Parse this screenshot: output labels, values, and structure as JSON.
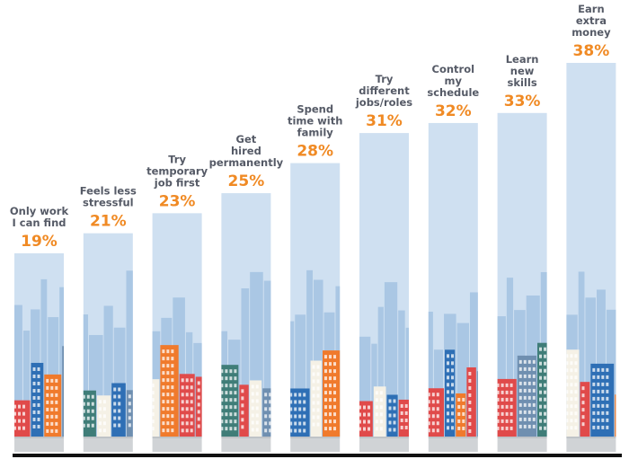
{
  "chart_data": {
    "type": "bar",
    "categories": [
      [
        "Only work",
        "I can find"
      ],
      [
        "Feels less",
        "stressful"
      ],
      [
        "Try",
        "temporary",
        "job first"
      ],
      [
        "Get",
        "hired",
        "permanently"
      ],
      [
        "Spend",
        "time with",
        "family"
      ],
      [
        "Try",
        "different",
        "jobs/roles"
      ],
      [
        "Control",
        "my",
        "schedule"
      ],
      [
        "Learn",
        "new",
        "skills"
      ],
      [
        "Earn",
        "extra",
        "money"
      ]
    ],
    "values": [
      19,
      21,
      23,
      25,
      28,
      31,
      32,
      33,
      38
    ],
    "value_labels": [
      "19%",
      "21%",
      "23%",
      "25%",
      "28%",
      "31%",
      "32%",
      "33%",
      "38%"
    ],
    "unit": "%",
    "ylim": [
      0,
      38
    ],
    "grid": false,
    "legend": "none",
    "colors": {
      "bar": "#cfe0f1",
      "skyline": "#aac7e4",
      "ground": "#d0d3d6",
      "baseline": "#111111",
      "label": "#555a66",
      "value": "#f08a24",
      "building_red": "#e04a4a",
      "building_orange": "#f07a2c",
      "building_blue": "#2e6fb5",
      "building_teal": "#3f7d78"
    }
  }
}
